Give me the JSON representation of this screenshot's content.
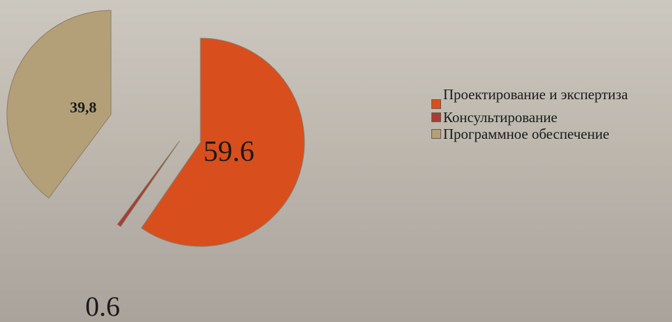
{
  "chart_data": {
    "type": "pie",
    "exploded": true,
    "series": [
      {
        "name": "Проектирование и экспертиза",
        "value": 59.6,
        "label": "59.6",
        "color": "#d94e1d"
      },
      {
        "name": "Консультирование",
        "value": 0.6,
        "label": "0.6",
        "color": "#a63d34"
      },
      {
        "name": "Программное обеспечение",
        "value": 39.8,
        "label": "39,8",
        "color": "#b3a078"
      }
    ],
    "legend": {
      "placement": "right"
    }
  }
}
